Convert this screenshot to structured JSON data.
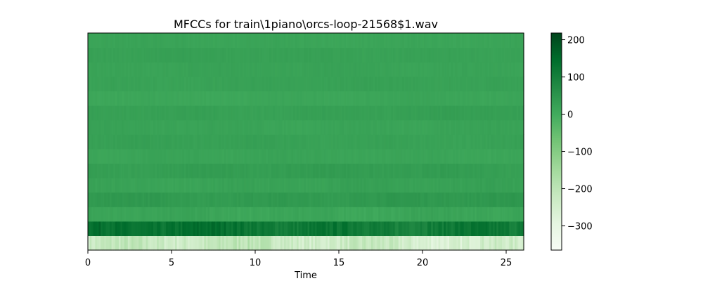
{
  "chart_data": {
    "type": "heatmap",
    "title": "MFCCs for train\\1piano\\orcs-loop-21568$1.wav",
    "xlabel": "Time",
    "ylabel": "",
    "xlim": [
      0,
      26.05
    ],
    "xticks": [
      "0",
      "5",
      "10",
      "15",
      "20",
      "25"
    ],
    "y_ticks_visible": false,
    "n_coefficients": 15,
    "colormap": "Greens",
    "colormap_colors": [
      "#f7fcf5",
      "#e5f5e0",
      "#c7e9c0",
      "#a1d99b",
      "#74c476",
      "#41ab5d",
      "#238b45",
      "#006d2c",
      "#00441b"
    ],
    "colorbar": {
      "range": [
        -365,
        218
      ],
      "ticks": [
        "200",
        "100",
        "0",
        "−100",
        "−200",
        "−300"
      ]
    },
    "coefficient_means": [
      -235,
      120,
      15,
      40,
      20,
      30,
      15,
      22,
      18,
      25,
      12,
      20,
      18,
      22,
      15
    ],
    "coefficient_variation": [
      70,
      45,
      15,
      12,
      10,
      10,
      8,
      8,
      8,
      8,
      7,
      7,
      7,
      7,
      7
    ],
    "grid": false
  }
}
